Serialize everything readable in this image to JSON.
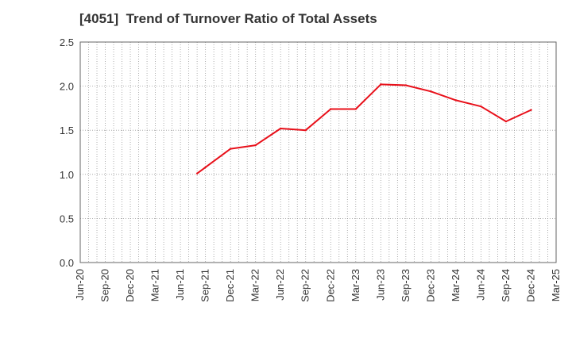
{
  "chart_data": {
    "type": "line",
    "title": "[4051]  Trend of Turnover Ratio of Total Assets",
    "xlabel": "",
    "ylabel": "",
    "x_ticks": [
      "Jun-20",
      "Sep-20",
      "Dec-20",
      "Mar-21",
      "Jun-21",
      "Sep-21",
      "Dec-21",
      "Mar-22",
      "Jun-22",
      "Sep-22",
      "Dec-22",
      "Mar-23",
      "Jun-23",
      "Sep-23",
      "Dec-23",
      "Mar-24",
      "Jun-24",
      "Sep-24",
      "Dec-24",
      "Mar-25"
    ],
    "y_ticks": [
      "0.0",
      "0.5",
      "1.0",
      "1.5",
      "2.0",
      "2.5"
    ],
    "ylim": [
      0,
      2.5
    ],
    "grid": true,
    "series": [
      {
        "color": "#e8101a",
        "points": [
          {
            "x": "Aug-21",
            "y": 1.01
          },
          {
            "x": "Sep-21",
            "y": 1.08
          },
          {
            "x": "Dec-21",
            "y": 1.29
          },
          {
            "x": "Mar-22",
            "y": 1.33
          },
          {
            "x": "Jun-22",
            "y": 1.52
          },
          {
            "x": "Sep-22",
            "y": 1.5
          },
          {
            "x": "Dec-22",
            "y": 1.74
          },
          {
            "x": "Mar-23",
            "y": 1.74
          },
          {
            "x": "Jun-23",
            "y": 2.02
          },
          {
            "x": "Sep-23",
            "y": 2.01
          },
          {
            "x": "Dec-23",
            "y": 1.94
          },
          {
            "x": "Mar-24",
            "y": 1.84
          },
          {
            "x": "Jun-24",
            "y": 1.77
          },
          {
            "x": "Sep-24",
            "y": 1.6
          },
          {
            "x": "Dec-24",
            "y": 1.73
          }
        ]
      }
    ]
  }
}
